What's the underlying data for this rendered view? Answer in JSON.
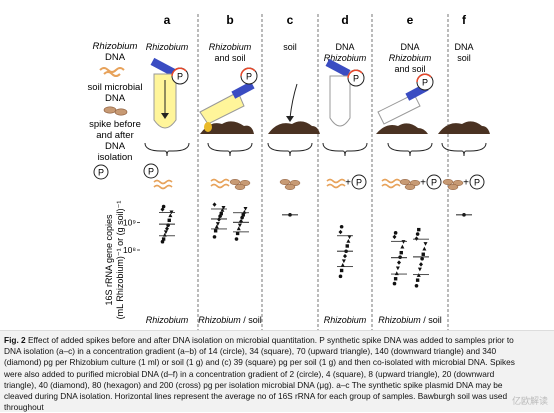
{
  "figure": {
    "panels": [
      {
        "letter": "a",
        "header": [
          "Rhizobium"
        ],
        "xlabel": "Rhizobium"
      },
      {
        "letter": "b",
        "header": [
          "Rhizobium",
          "and soil"
        ],
        "xlabel": "Rhizobium / soil"
      },
      {
        "letter": "c",
        "header": [
          "soil"
        ],
        "xlabel": ""
      },
      {
        "letter": "d",
        "header": [
          "DNA",
          "Rhizobium"
        ],
        "xlabel": "Rhizobium"
      },
      {
        "letter": "e",
        "header": [
          "DNA",
          "Rhizobium",
          "and soil"
        ],
        "xlabel": "Rhizobium / soil"
      },
      {
        "letter": "f",
        "header": [
          "DNA",
          "soil"
        ],
        "xlabel": ""
      }
    ],
    "legend": {
      "rhizobium_dna": [
        "Rhizobium",
        "DNA"
      ],
      "soil_dna": [
        "soil microbial",
        "DNA"
      ],
      "spike": [
        "spike before",
        "and after",
        "DNA",
        "isolation"
      ]
    },
    "spike_symbol": "P",
    "plus": "+",
    "ylabel_line1": "16S rRNA gene copies",
    "ylabel_line2": "(mL Rhizobium)⁻¹ or (g soil)⁻¹",
    "yticks": [
      "10⁸",
      "10⁹"
    ]
  },
  "chart_data": {
    "type": "scatter",
    "ylabel": "16S rRNA gene copies (mL Rhizobium)⁻¹ or (g soil)⁻¹",
    "yscale": "log",
    "yticks": [
      "10⁸",
      "10⁹"
    ],
    "groups": [
      {
        "panel": "a",
        "label": "Rhizobium",
        "values": [
          200000000.0,
          250000000.0,
          350000000.0,
          450000000.0,
          600000000.0,
          800000000.0,
          1200000000.0,
          1800000000.0,
          2400000000.0,
          3000000000.0,
          3800000000.0
        ]
      },
      {
        "panel": "b",
        "label": "Rhizobium",
        "values": [
          300000000.0,
          500000000.0,
          700000000.0,
          900000000.0,
          1300000000.0,
          1700000000.0,
          2100000000.0,
          2800000000.0,
          3500000000.0,
          4500000000.0
        ]
      },
      {
        "panel": "b",
        "label": "soil",
        "values": [
          250000000.0,
          400000000.0,
          600000000.0,
          800000000.0,
          1100000000.0,
          1500000000.0,
          1900000000.0,
          2400000000.0,
          3200000000.0
        ]
      },
      {
        "panel": "c",
        "label": "soil",
        "values": [
          1900000000.0
        ]
      },
      {
        "panel": "d",
        "label": "Rhizobium",
        "values": [
          11000000.0,
          18000000.0,
          28000000.0,
          40000000.0,
          60000000.0,
          90000000.0,
          140000000.0,
          210000000.0,
          300000000.0,
          450000000.0,
          700000000.0
        ]
      },
      {
        "panel": "e",
        "label": "Rhizobium",
        "values": [
          6000000.0,
          9000000.0,
          14000000.0,
          22000000.0,
          35000000.0,
          55000000.0,
          80000000.0,
          130000000.0,
          200000000.0,
          300000000.0,
          420000000.0
        ]
      },
      {
        "panel": "e",
        "label": "soil",
        "values": [
          5000000.0,
          8000000.0,
          12000000.0,
          20000000.0,
          30000000.0,
          48000000.0,
          70000000.0,
          110000000.0,
          170000000.0,
          260000000.0,
          380000000.0,
          550000000.0
        ]
      },
      {
        "panel": "f",
        "label": "soil",
        "values": [
          1900000000.0
        ]
      }
    ]
  },
  "caption": {
    "fig_label": "Fig. 2",
    "text": " Effect of added spikes before and after DNA isolation on microbial quantitation. P synthetic spike DNA was added to samples prior to DNA isolation (a–c) in a concentration gradient (a–b) of 14 (circle), 34 (square), 70 (upward triangle), 140 (downward triangle) and 340 (diamond) pg per Rhizobium culture (1 ml) or soil (1 g) and (c) 39 (square) pg per soil (1 g) and then co-isolated with microbial DNA. Spikes were also added to purified microbial DNA (d–f) in a concentration gradient of 2 (circle), 4 (square), 8 (upward triangle), 20 (downward triangle), 40 (diamond), 80 (hexagon) and 200 (cross) pg per isolation microbial DNA (μg). a–c The synthetic spike plasmid DNA may be cleaved during DNA isolation. Horizontal lines represent the average no of 16S rRNA for each group of samples. Bawburgh soil was used throughout"
  },
  "watermark": "亿欧解读"
}
